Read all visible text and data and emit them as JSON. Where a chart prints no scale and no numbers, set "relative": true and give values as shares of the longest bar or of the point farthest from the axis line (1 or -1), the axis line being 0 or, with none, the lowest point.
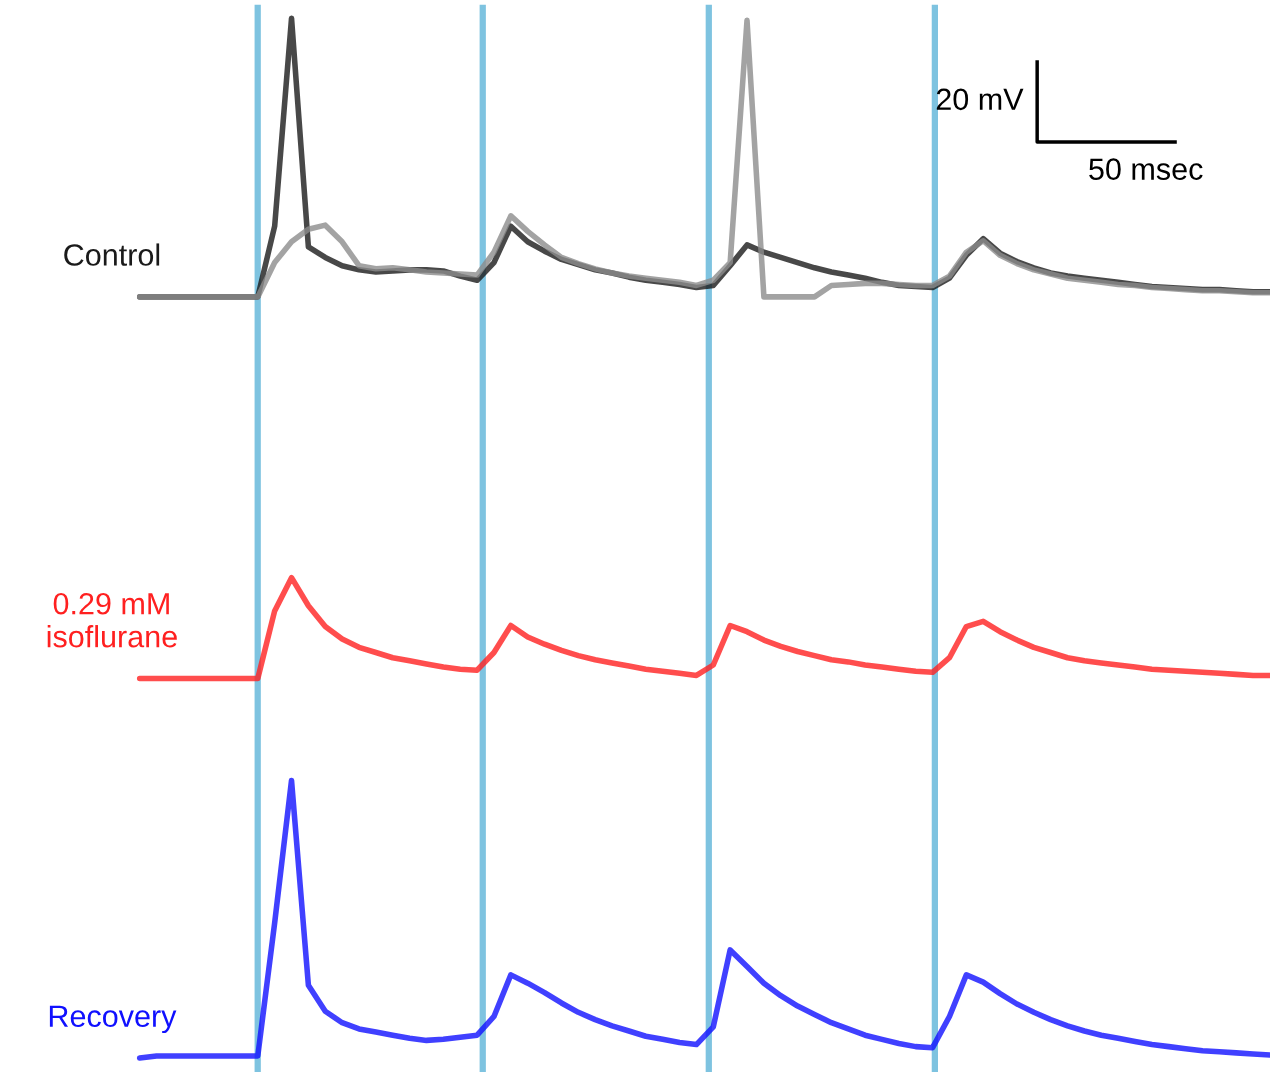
{
  "chart_data": {
    "type": "line",
    "relative": true,
    "tick_labels": false,
    "categories": [
      null,
      null,
      null,
      null,
      null,
      null,
      null,
      null,
      null,
      null,
      null,
      null,
      null,
      null,
      null,
      null,
      null,
      null,
      null,
      null,
      null,
      null,
      null,
      null,
      null,
      null,
      null,
      null,
      null,
      null,
      null,
      null,
      null,
      null,
      null,
      null,
      null,
      null,
      null,
      null,
      null,
      null,
      null,
      null,
      null,
      null,
      null,
      null,
      null,
      null,
      null,
      null,
      null,
      null,
      null,
      null,
      null,
      null,
      null,
      null,
      null,
      null,
      null,
      null,
      null,
      null,
      null,
      null
    ],
    "series": [
      {
        "name": "Control",
        "color": "#1a1a1a",
        "values": [
          0.732,
          0.732,
          0.732,
          0.732,
          0.732,
          0.732,
          0.732,
          0.732,
          0.8,
          1.0,
          0.78,
          0.77,
          0.762,
          0.758,
          0.756,
          0.757,
          0.758,
          0.758,
          0.757,
          0.752,
          0.748,
          0.765,
          0.8,
          0.785,
          0.776,
          0.768,
          0.763,
          0.758,
          0.755,
          0.751,
          0.748,
          0.746,
          0.744,
          0.741,
          0.743,
          0.762,
          0.782,
          0.775,
          0.77,
          0.765,
          0.76,
          0.756,
          0.753,
          0.75,
          0.746,
          0.743,
          0.742,
          0.741,
          0.75,
          0.772,
          0.788,
          0.774,
          0.766,
          0.76,
          0.755,
          0.752,
          0.75,
          0.748,
          0.746,
          0.744,
          0.742,
          0.741,
          0.74,
          0.739,
          0.739,
          0.738,
          0.737,
          0.737
        ]
      },
      {
        "color": "#8c8c8c",
        "values": [
          0.732,
          0.732,
          0.732,
          0.732,
          0.732,
          0.732,
          0.732,
          0.732,
          0.765,
          0.785,
          0.797,
          0.801,
          0.785,
          0.762,
          0.759,
          0.76,
          0.758,
          0.756,
          0.755,
          0.754,
          0.753,
          0.775,
          0.81,
          0.795,
          0.782,
          0.77,
          0.764,
          0.759,
          0.755,
          0.752,
          0.75,
          0.748,
          0.746,
          0.743,
          0.748,
          0.765,
          0.998,
          0.732,
          0.732,
          0.732,
          0.732,
          0.743,
          0.744,
          0.745,
          0.745,
          0.744,
          0.743,
          0.743,
          0.752,
          0.775,
          0.786,
          0.772,
          0.764,
          0.758,
          0.754,
          0.75,
          0.748,
          0.746,
          0.744,
          0.743,
          0.741,
          0.74,
          0.739,
          0.738,
          0.738,
          0.737,
          0.736,
          0.736
        ]
      },
      {
        "name": "0.29 mM\nisoflurane",
        "color": "#ff2020",
        "values": [
          0.365,
          0.365,
          0.365,
          0.365,
          0.365,
          0.365,
          0.365,
          0.365,
          0.43,
          0.462,
          0.435,
          0.415,
          0.403,
          0.395,
          0.39,
          0.385,
          0.382,
          0.379,
          0.376,
          0.374,
          0.373,
          0.39,
          0.416,
          0.405,
          0.398,
          0.392,
          0.387,
          0.383,
          0.38,
          0.377,
          0.374,
          0.372,
          0.37,
          0.368,
          0.378,
          0.416,
          0.41,
          0.402,
          0.396,
          0.391,
          0.387,
          0.383,
          0.381,
          0.378,
          0.376,
          0.374,
          0.372,
          0.371,
          0.385,
          0.415,
          0.42,
          0.41,
          0.402,
          0.395,
          0.39,
          0.385,
          0.382,
          0.38,
          0.378,
          0.376,
          0.374,
          0.373,
          0.372,
          0.371,
          0.37,
          0.369,
          0.368,
          0.368
        ]
      },
      {
        "name": "Recovery",
        "color": "#1010ff",
        "values": [
          0.0,
          0.002,
          0.002,
          0.002,
          0.002,
          0.002,
          0.002,
          0.002,
          0.13,
          0.267,
          0.07,
          0.045,
          0.034,
          0.028,
          0.025,
          0.022,
          0.019,
          0.017,
          0.018,
          0.02,
          0.022,
          0.04,
          0.08,
          0.072,
          0.063,
          0.053,
          0.044,
          0.037,
          0.031,
          0.026,
          0.021,
          0.018,
          0.015,
          0.013,
          0.03,
          0.104,
          0.088,
          0.072,
          0.06,
          0.05,
          0.042,
          0.034,
          0.028,
          0.022,
          0.018,
          0.014,
          0.011,
          0.01,
          0.04,
          0.08,
          0.073,
          0.062,
          0.052,
          0.044,
          0.037,
          0.031,
          0.026,
          0.022,
          0.019,
          0.016,
          0.013,
          0.011,
          0.009,
          0.007,
          0.006,
          0.005,
          0.004,
          0.003
        ]
      }
    ],
    "annotations": [
      "20 mV",
      "50 msec"
    ]
  }
}
